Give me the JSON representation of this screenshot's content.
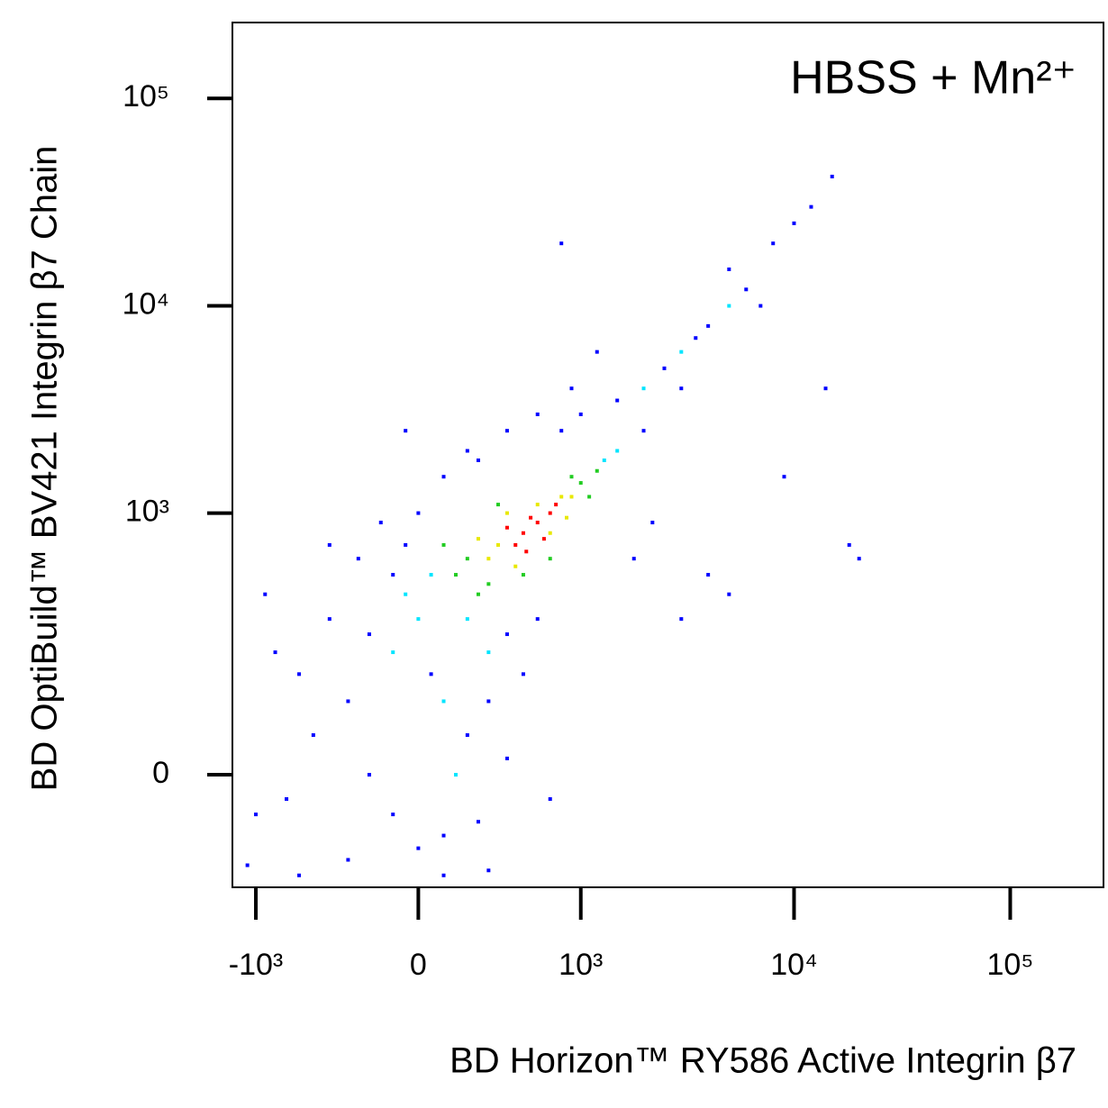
{
  "chart_data": {
    "type": "scatter",
    "title": "HBSS + Mn²⁺",
    "x_label": "BD Horizon™ RY586 Active Integrin β7",
    "y_label": "BD OptiBuild™ BV421 Integrin β7 Chain",
    "scale": "biexponential",
    "xlim": [
      -1300,
      270000
    ],
    "ylim": [
      -176,
      232000
    ],
    "xticks": [
      {
        "value": -1000,
        "label": "-10³"
      },
      0,
      {
        "value": 1000,
        "label": "10³"
      },
      {
        "value": 10000,
        "label": "10⁴"
      },
      {
        "value": 100000,
        "label": "10⁵"
      }
    ],
    "yticks": [
      0,
      {
        "value": 1000,
        "label": "10³"
      },
      {
        "value": 10000,
        "label": "10⁴"
      },
      {
        "value": 100000,
        "label": "10⁵"
      }
    ],
    "series": [
      {
        "color": "#0000ff",
        "x": [
          -400,
          -300,
          -200,
          -100,
          0,
          100,
          200,
          300,
          400,
          -500,
          -600,
          -700,
          -800,
          -300,
          50,
          250,
          400,
          500,
          600,
          -200,
          -100,
          -250,
          -400,
          -150,
          0,
          100,
          200,
          400,
          600,
          800,
          1000,
          1500,
          2000,
          2500,
          3000,
          4000,
          6000,
          8000,
          10000,
          12000,
          15000,
          5000,
          7000,
          3500,
          1200,
          -50,
          900,
          800,
          14000,
          20000,
          18000,
          9000,
          4000,
          5000,
          3000,
          -1000,
          -900,
          -1100,
          -600,
          100,
          300,
          -50,
          700,
          250,
          1800,
          2200
        ],
        "y": [
          300,
          100,
          0,
          -50,
          -100,
          -80,
          50,
          100,
          250,
          50,
          150,
          -30,
          200,
          -120,
          150,
          -60,
          20,
          150,
          300,
          250,
          500,
          600,
          700,
          900,
          1000,
          1500,
          2000,
          2500,
          3000,
          2500,
          3000,
          3500,
          2500,
          5000,
          4000,
          8000,
          12000,
          20000,
          25000,
          30000,
          42000,
          15000,
          10000,
          7000,
          6000,
          2500,
          4000,
          20000,
          4000,
          600,
          700,
          1500,
          500,
          400,
          300,
          -50,
          400,
          -130,
          -150,
          -150,
          -140,
          700,
          -30,
          1800,
          600,
          900
        ]
      },
      {
        "color": "#00e5ff",
        "x": [
          50,
          1300,
          -50,
          200,
          1500,
          0,
          100,
          300,
          2000,
          3000,
          -100,
          150,
          5000
        ],
        "y": [
          500,
          1800,
          400,
          300,
          2000,
          300,
          100,
          200,
          4000,
          6000,
          200,
          0,
          10000
        ]
      },
      {
        "color": "#22cc22",
        "x": [
          200,
          150,
          1000,
          300,
          900,
          500,
          100,
          1100,
          250,
          700,
          350,
          1200
        ],
        "y": [
          600,
          500,
          1400,
          450,
          1500,
          500,
          700,
          1200,
          400,
          600,
          1100,
          1600
        ]
      },
      {
        "color": "#e8e800",
        "x": [
          350,
          800,
          300,
          600,
          900,
          450,
          700,
          250,
          850,
          400
        ],
        "y": [
          700,
          1200,
          600,
          1100,
          1200,
          550,
          800,
          750,
          950,
          1000
        ]
      },
      {
        "color": "#ff0000",
        "x": [
          500,
          600,
          450,
          700,
          550,
          650,
          400,
          750,
          520
        ],
        "y": [
          800,
          900,
          700,
          1000,
          950,
          750,
          850,
          1100,
          650
        ]
      }
    ]
  }
}
